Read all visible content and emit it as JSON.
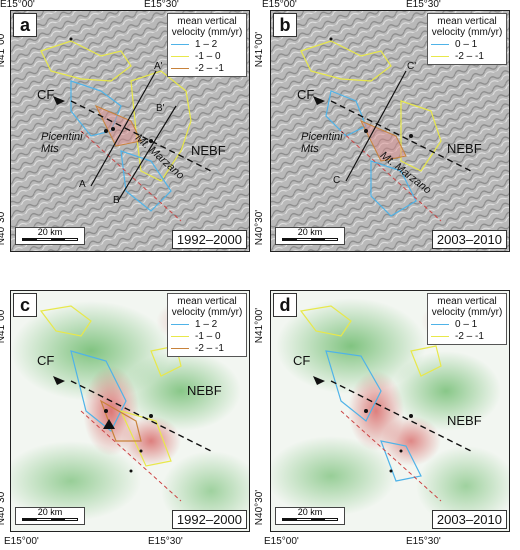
{
  "coords": {
    "lon_left": "E15°00'",
    "lon_right": "E15°30'",
    "lat_top": "N41°00'",
    "lat_bottom": "N40°30'"
  },
  "legend_title": "mean vertical velocity (mm/yr)",
  "labels": {
    "cf": "CF",
    "nebf": "NEBF",
    "picentini": "Picentini Mts",
    "marzano": "Mt. Marzano",
    "scale": "20 km"
  },
  "profiles": {
    "a": "A",
    "a_prime": "A'",
    "b": "B",
    "b_prime": "B'",
    "c": "C",
    "c_prime": "C'"
  },
  "panels": [
    {
      "id": "a",
      "period": "1992–2000",
      "legend": [
        {
          "label": "1 – 2",
          "color": "#4fb3e8"
        },
        {
          "label": "-1 – 0",
          "color": "#e8e84a"
        },
        {
          "label": "-2 – -1",
          "color": "#c8823a"
        }
      ]
    },
    {
      "id": "b",
      "period": "2003–2010",
      "legend": [
        {
          "label": "0 – 1",
          "color": "#4fb3e8"
        },
        {
          "label": "-2 – -1",
          "color": "#e8e84a"
        }
      ]
    },
    {
      "id": "c",
      "period": "1992–2000",
      "legend": [
        {
          "label": "1 – 2",
          "color": "#4fb3e8"
        },
        {
          "label": "-1 – 0",
          "color": "#e8e84a"
        },
        {
          "label": "-2 – -1",
          "color": "#c8823a"
        }
      ]
    },
    {
      "id": "d",
      "period": "2003–2010",
      "legend": [
        {
          "label": "0 – 1",
          "color": "#4fb3e8"
        },
        {
          "label": "-2 – -1",
          "color": "#e8e84a"
        }
      ]
    }
  ]
}
